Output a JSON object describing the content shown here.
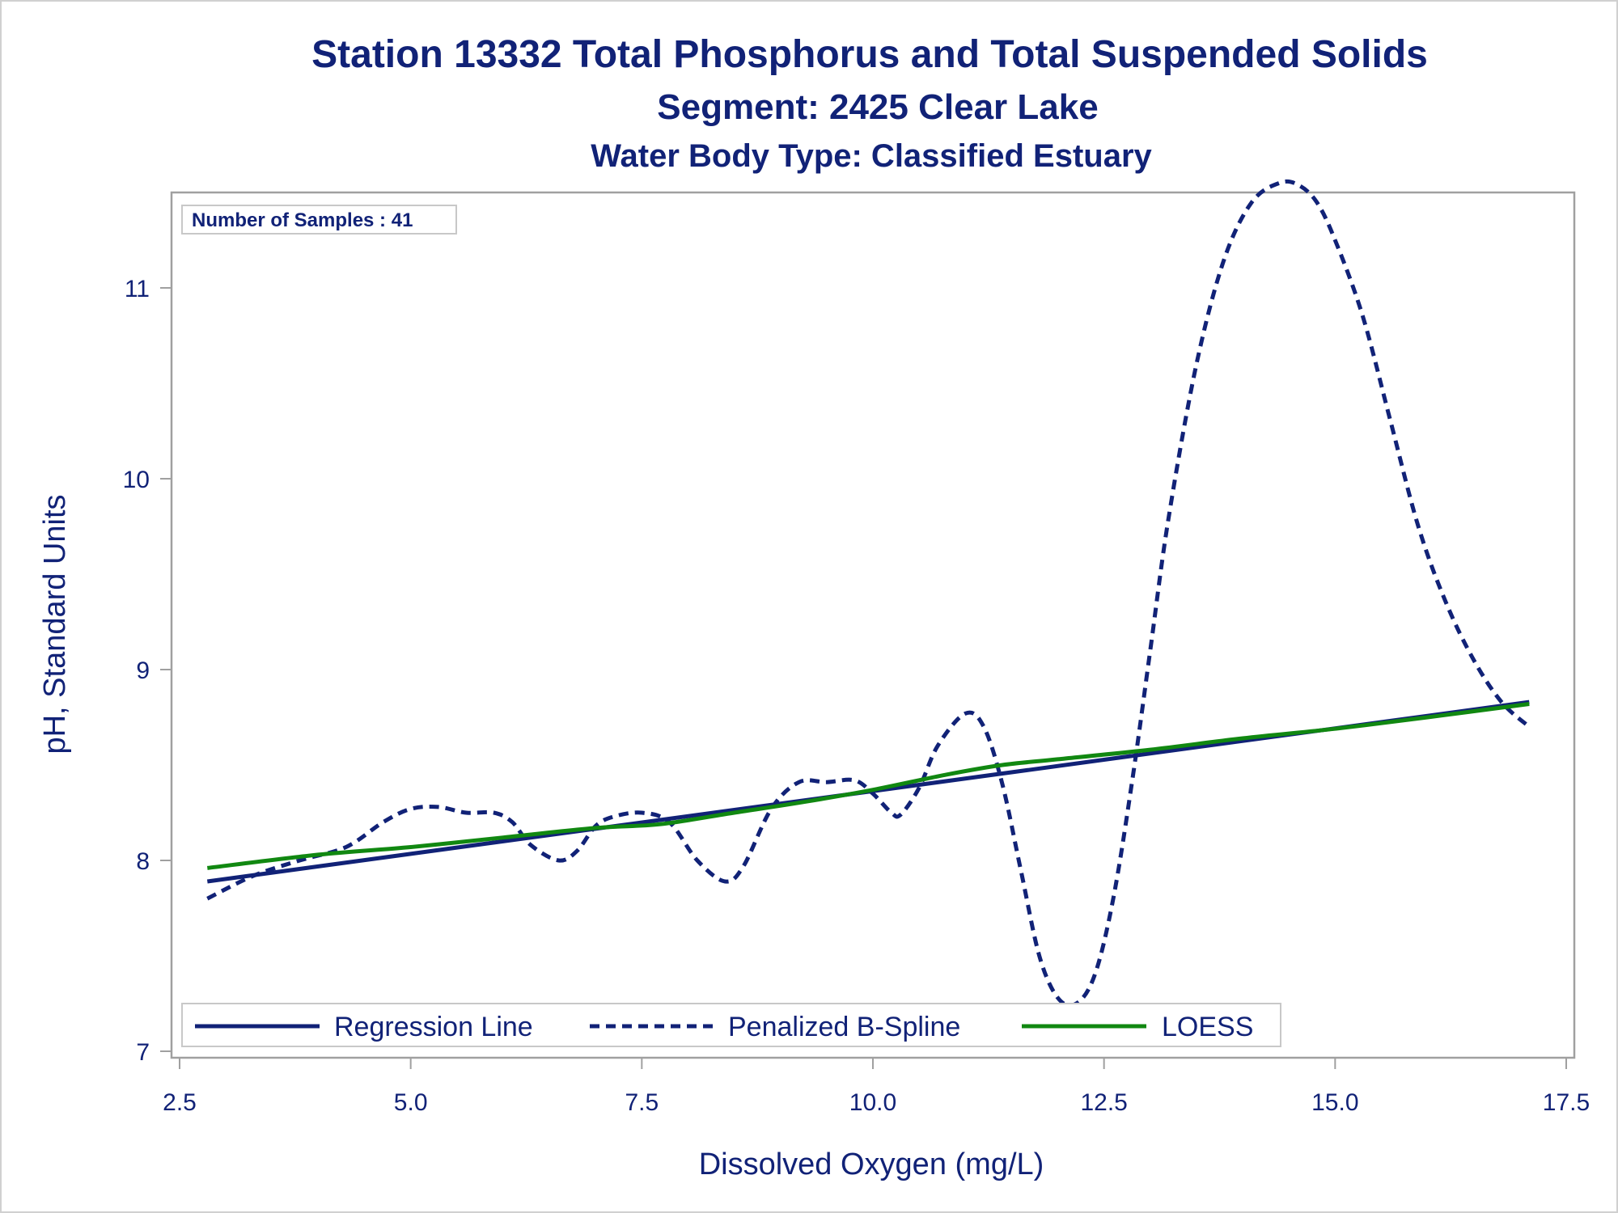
{
  "colors": {
    "text": "#112277",
    "regression": "#112277",
    "spline": "#112277",
    "loess": "#118811",
    "frame": "#a0a0a0"
  },
  "chart_data": {
    "type": "line",
    "title": "Station 13332  Total Phosphorus and Total Suspended Solids",
    "subtitle": "Segment: 2425  Clear Lake",
    "subtitle2": "Water Body Type: Classified Estuary",
    "xlabel": "Dissolved Oxygen (mg/L)",
    "ylabel": "pH, Standard Units",
    "xlim": [
      2.5,
      17.5
    ],
    "ylim": [
      7,
      11.5
    ],
    "xticks": [
      2.5,
      5.0,
      7.5,
      10.0,
      12.5,
      15.0,
      17.5
    ],
    "xtick_labels": [
      "2.5",
      "5.0",
      "7.5",
      "10.0",
      "12.5",
      "15.0",
      "17.5"
    ],
    "yticks": [
      7,
      8,
      9,
      10,
      11
    ],
    "ytick_labels": [
      "7",
      "8",
      "9",
      "10",
      "11"
    ],
    "inset_label": "Number of Samples : 41",
    "grid": false,
    "legend_position": "bottom-left inside",
    "series": [
      {
        "name": "Regression Line",
        "style": "solid",
        "x": [
          2.8,
          17.1
        ],
        "y": [
          7.89,
          8.83
        ]
      },
      {
        "name": "Penalized B-Spline",
        "style": "dashed",
        "x": [
          2.8,
          3.3,
          3.8,
          4.3,
          4.7,
          5.0,
          5.3,
          5.6,
          5.9,
          6.1,
          6.3,
          6.6,
          6.8,
          7.0,
          7.2,
          7.5,
          7.8,
          8.1,
          8.4,
          8.6,
          8.9,
          9.2,
          9.5,
          9.8,
          10.0,
          10.2,
          10.3,
          10.5,
          10.7,
          11.0,
          11.2,
          11.4,
          11.6,
          11.8,
          12.0,
          12.2,
          12.4,
          12.6,
          12.8,
          13.0,
          13.2,
          13.5,
          13.8,
          14.1,
          14.4,
          14.6,
          14.8,
          15.0,
          15.3,
          15.6,
          15.9,
          16.2,
          16.5,
          16.8,
          17.1
        ],
        "y": [
          7.8,
          7.92,
          8.0,
          8.07,
          8.2,
          8.27,
          8.28,
          8.25,
          8.25,
          8.2,
          8.08,
          8.0,
          8.05,
          8.18,
          8.23,
          8.25,
          8.2,
          8.0,
          7.89,
          7.97,
          8.27,
          8.41,
          8.41,
          8.42,
          8.35,
          8.25,
          8.24,
          8.38,
          8.6,
          8.77,
          8.7,
          8.4,
          7.95,
          7.5,
          7.28,
          7.25,
          7.4,
          7.8,
          8.4,
          9.1,
          9.8,
          10.6,
          11.15,
          11.45,
          11.55,
          11.54,
          11.45,
          11.25,
          10.85,
          10.3,
          9.75,
          9.35,
          9.05,
          8.83,
          8.7
        ]
      },
      {
        "name": "LOESS",
        "style": "solid",
        "x": [
          2.8,
          4.0,
          5.0,
          6.0,
          7.0,
          7.7,
          8.5,
          9.3,
          10.0,
          10.8,
          11.4,
          12.0,
          13.0,
          14.0,
          15.0,
          16.0,
          17.1
        ],
        "y": [
          7.96,
          8.03,
          8.07,
          8.12,
          8.17,
          8.19,
          8.25,
          8.31,
          8.37,
          8.45,
          8.5,
          8.53,
          8.58,
          8.64,
          8.69,
          8.75,
          8.82
        ]
      }
    ]
  }
}
